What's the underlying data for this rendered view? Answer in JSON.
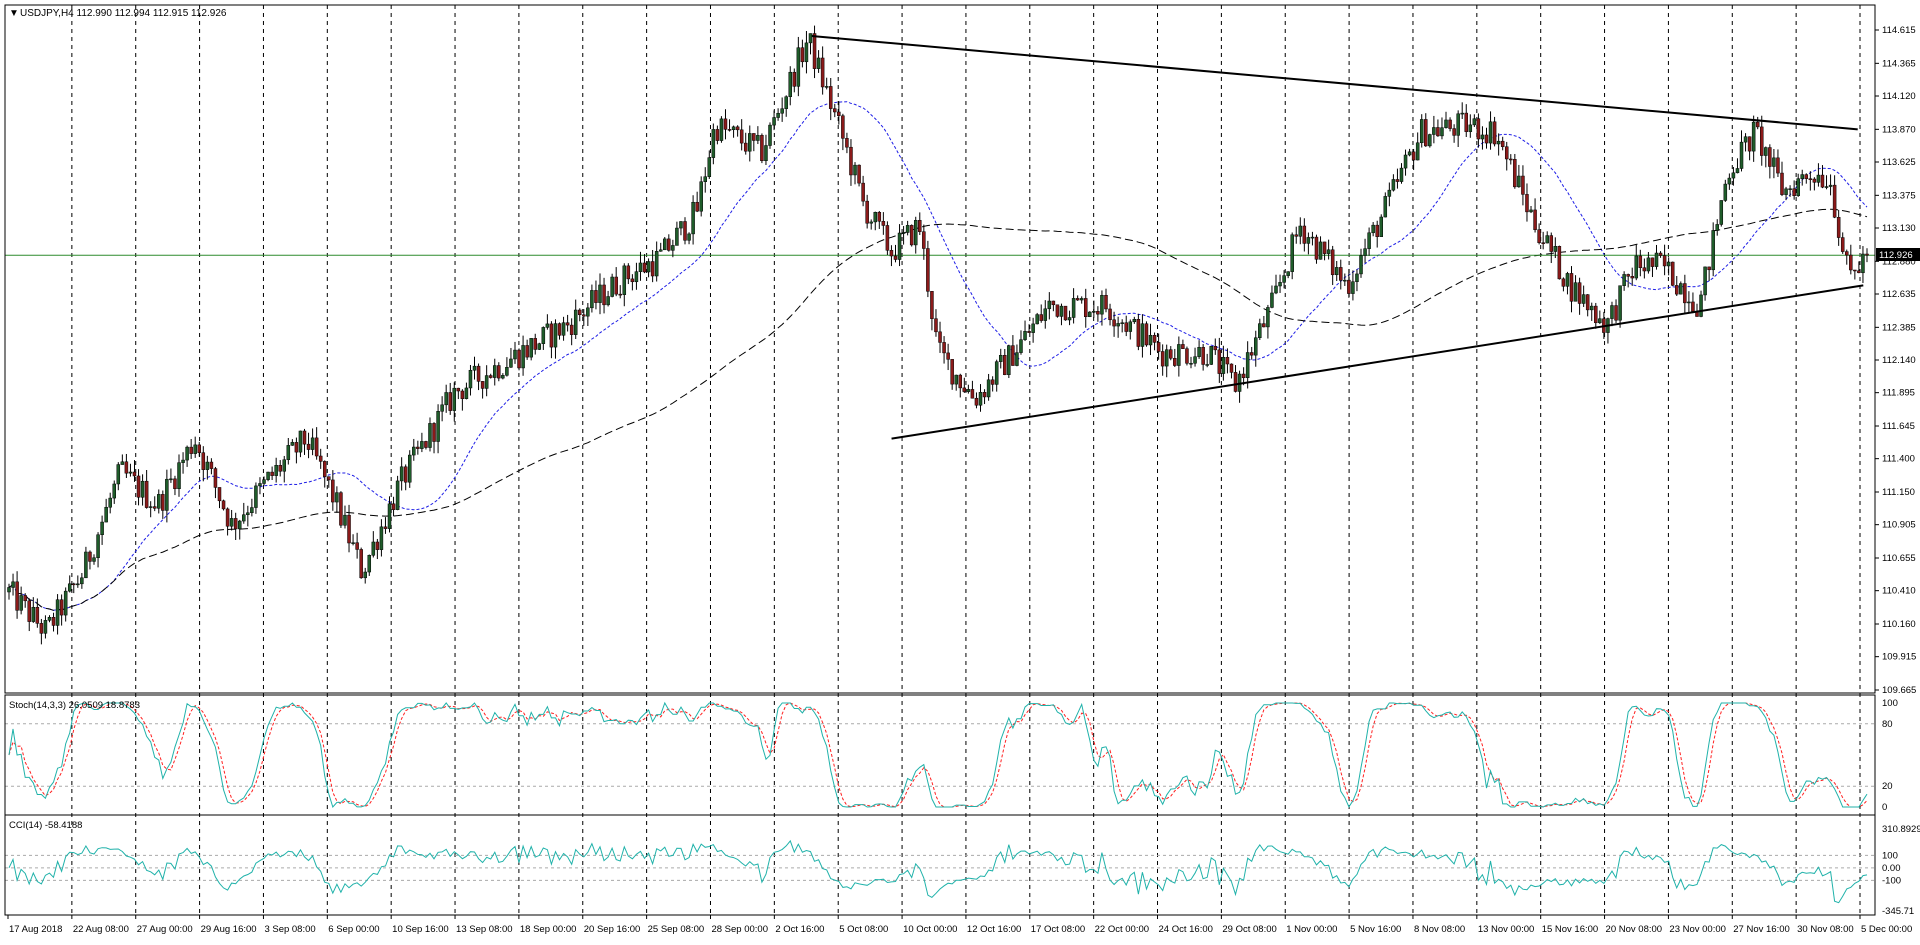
{
  "colors": {
    "background": "#ffffff",
    "grid": "#000000",
    "bull_candle": "#1f5c2a",
    "bear_candle": "#8b1a1a",
    "wick": "#000000",
    "fast_ma": "#1e1ee6",
    "slow_ma": "#000000",
    "price_line": "#2e8b2e",
    "trendline": "#000000",
    "stoch_main": "#20b2aa",
    "stoch_signal": "#ff2020",
    "cci": "#20b2aa",
    "price_tag_bg": "#000000",
    "price_tag_text": "#ffffff"
  },
  "header": {
    "symbol_info": "USDJPY,H4  112.990 112.994 112.915 112.926"
  },
  "price_axis": {
    "labels": [
      "114.615",
      "114.365",
      "114.120",
      "113.870",
      "113.625",
      "113.375",
      "113.130",
      "112.880",
      "112.635",
      "112.385",
      "112.140",
      "111.895",
      "111.645",
      "111.400",
      "111.150",
      "110.905",
      "110.655",
      "110.410",
      "110.160",
      "109.915",
      "109.665"
    ],
    "current_price": "112.926"
  },
  "time_axis": {
    "labels": [
      "17 Aug 2018",
      "22 Aug 08:00",
      "27 Aug 00:00",
      "29 Aug 16:00",
      "3 Sep 08:00",
      "6 Sep 00:00",
      "10 Sep 16:00",
      "13 Sep 08:00",
      "18 Sep 00:00",
      "20 Sep 16:00",
      "25 Sep 08:00",
      "28 Sep 00:00",
      "2 Oct 16:00",
      "5 Oct 08:00",
      "10 Oct 00:00",
      "12 Oct 16:00",
      "17 Oct 08:00",
      "22 Oct 00:00",
      "24 Oct 16:00",
      "29 Oct 08:00",
      "1 Nov 00:00",
      "5 Nov 16:00",
      "8 Nov 08:00",
      "13 Nov 00:00",
      "15 Nov 16:00",
      "20 Nov 08:00",
      "23 Nov 00:00",
      "27 Nov 16:00",
      "30 Nov 08:00",
      "5 Dec 00:00"
    ]
  },
  "stoch_panel": {
    "label": "Stoch(14,3,3) 26.0509 18.8783",
    "axis_labels": [
      "100",
      "80",
      "20",
      "0"
    ]
  },
  "cci_panel": {
    "label": "CCI(14) -58.4188",
    "axis_labels": [
      "310.8929",
      "100",
      "0.00",
      "-100",
      "-345.71"
    ]
  },
  "chart_data": [
    {
      "type": "candlestick",
      "title": "USDJPY,H4  112.990 112.994 112.915 112.926",
      "symbol": "USDJPY",
      "timeframe": "H4",
      "last_bar": {
        "open": 112.99,
        "high": 112.994,
        "low": 112.915,
        "close": 112.926
      },
      "ylim": [
        109.665,
        114.615
      ],
      "x_range": [
        "17 Aug 2018",
        "5 Dec 00:00"
      ],
      "price_path": [
        [
          0,
          110.4
        ],
        [
          0.02,
          110.1
        ],
        [
          0.04,
          110.55
        ],
        [
          0.06,
          111.3
        ],
        [
          0.08,
          111.05
        ],
        [
          0.1,
          111.55
        ],
        [
          0.12,
          110.9
        ],
        [
          0.14,
          111.25
        ],
        [
          0.16,
          111.55
        ],
        [
          0.175,
          111.1
        ],
        [
          0.19,
          110.55
        ],
        [
          0.21,
          111.2
        ],
        [
          0.24,
          111.9
        ],
        [
          0.27,
          112.15
        ],
        [
          0.3,
          112.4
        ],
        [
          0.33,
          112.75
        ],
        [
          0.35,
          112.9
        ],
        [
          0.37,
          113.25
        ],
        [
          0.38,
          113.9
        ],
        [
          0.405,
          113.7
        ],
        [
          0.43,
          114.55
        ],
        [
          0.45,
          113.75
        ],
        [
          0.46,
          113.3
        ],
        [
          0.475,
          112.95
        ],
        [
          0.49,
          113.15
        ],
        [
          0.5,
          112.2
        ],
        [
          0.52,
          111.85
        ],
        [
          0.535,
          112.1
        ],
        [
          0.56,
          112.55
        ],
        [
          0.59,
          112.55
        ],
        [
          0.62,
          112.2
        ],
        [
          0.645,
          112.2
        ],
        [
          0.66,
          111.95
        ],
        [
          0.68,
          112.55
        ],
        [
          0.695,
          113.15
        ],
        [
          0.72,
          112.7
        ],
        [
          0.74,
          113.25
        ],
        [
          0.76,
          113.85
        ],
        [
          0.785,
          113.9
        ],
        [
          0.8,
          113.85
        ],
        [
          0.82,
          113.2
        ],
        [
          0.84,
          112.7
        ],
        [
          0.86,
          112.4
        ],
        [
          0.875,
          112.85
        ],
        [
          0.89,
          112.85
        ],
        [
          0.91,
          112.55
        ],
        [
          0.925,
          113.55
        ],
        [
          0.94,
          113.85
        ],
        [
          0.955,
          113.4
        ],
        [
          0.97,
          113.55
        ],
        [
          0.98,
          113.5
        ],
        [
          0.99,
          112.75
        ],
        [
          1.0,
          112.93
        ]
      ]
    },
    {
      "type": "line",
      "title": "Stoch(14,3,3) 26.0509 18.8783",
      "ylim": [
        0,
        100
      ],
      "last_values": {
        "main": 26.0509,
        "signal": 18.8783
      }
    },
    {
      "type": "line",
      "title": "CCI(14) -58.4188",
      "ylim": [
        -345.71,
        310.8929
      ],
      "last_value": -58.4188
    }
  ]
}
